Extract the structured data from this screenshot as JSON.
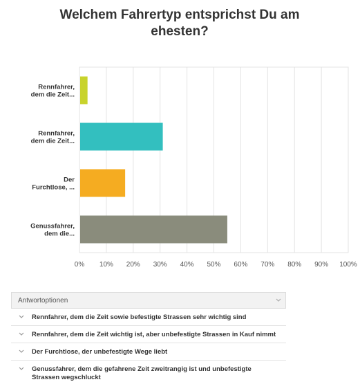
{
  "chart_data": {
    "type": "bar",
    "orientation": "horizontal",
    "title": "Welchem Fahrertyp entsprichst Du am ehesten?",
    "categories": [
      "Rennfahrer, dem die Zeit...",
      "Rennfahrer, dem die Zeit...",
      "Der Furchtlose, ...",
      "Genussfahrer, dem die..."
    ],
    "category_lines": [
      [
        "Rennfahrer,",
        "dem die Zeit..."
      ],
      [
        "Rennfahrer,",
        "dem die Zeit..."
      ],
      [
        "Der",
        "Furchtlose, ..."
      ],
      [
        "Genussfahrer,",
        "dem die..."
      ]
    ],
    "values": [
      3,
      31,
      17,
      55
    ],
    "colors": [
      "#c8d32c",
      "#33bfbf",
      "#f5ac21",
      "#8a8c7c"
    ],
    "xlim": [
      0,
      100
    ],
    "xticks": [
      "0%",
      "10%",
      "20%",
      "30%",
      "40%",
      "50%",
      "60%",
      "70%",
      "80%",
      "90%",
      "100%"
    ],
    "grid": true
  },
  "answer_table": {
    "header": "Antwortoptionen",
    "rows": [
      "Rennfahrer, dem die Zeit sowie befestigte Strassen sehr wichtig sind",
      "Rennfahrer, dem die Zeit wichtig ist, aber unbefestigte Strassen in Kauf nimmt",
      "Der Furchtlose, der unbefestigte Wege liebt",
      "Genussfahrer, dem die gefahrene Zeit zweitrangig ist und unbefestigte Strassen wegschluckt"
    ]
  }
}
